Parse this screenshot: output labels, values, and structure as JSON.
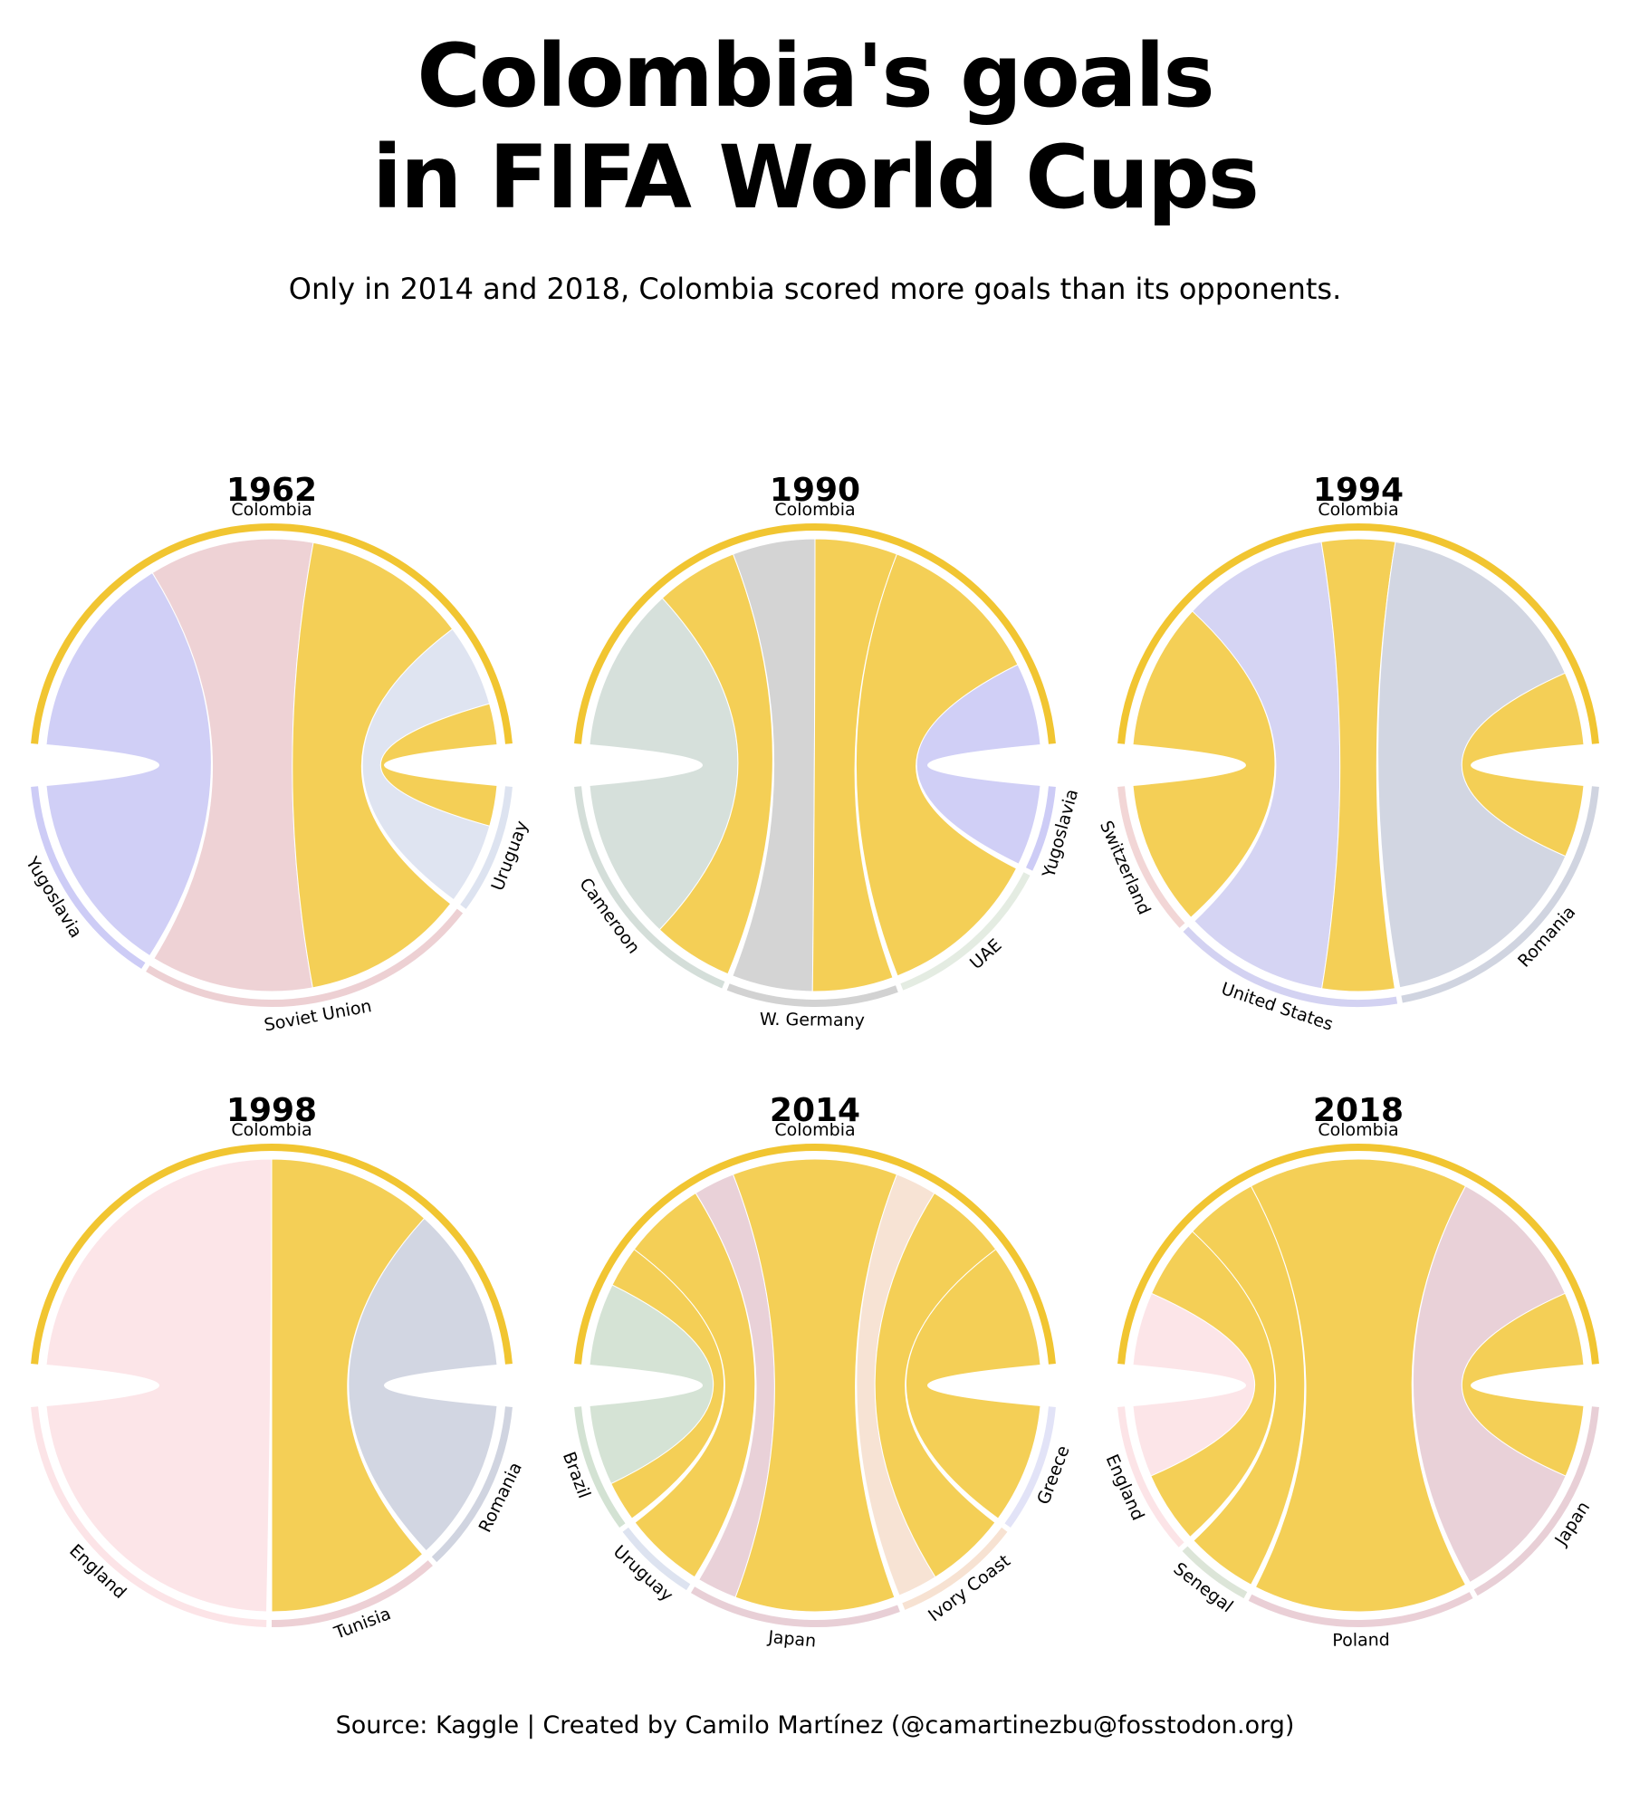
{
  "header": {
    "title_line1": "Colombia's goals",
    "title_line2": "in FIFA World Cups",
    "subtitle": "Only in 2014 and 2018, Colombia scored more goals than its opponents."
  },
  "footer": {
    "source": "Source: Kaggle | Created by Camilo Martínez (@camartinezbu@fosstodon.org)"
  },
  "colors": {
    "colombia": "#F1C531",
    "Uruguay": "#DDE3F0",
    "Yugoslavia": "#CDCCF6",
    "Soviet Union": "#EDD0D3",
    "Cameroon": "#D4DED9",
    "W. Germany": "#D2D2D2",
    "UAE": "#E4ECE2",
    "Switzerland": "#F2D6D6",
    "United States": "#D3D2F2",
    "Romania": "#D0D4E0",
    "England": "#FCE4E7",
    "Tunisia": "#EDD0D5",
    "Brazil": "#D3E2D3",
    "Greece": "#E2E3F7",
    "Japan": "#E8CFD6",
    "Ivory Coast": "#F7E2D2",
    "Senegal": "#DCE5D8",
    "Poland": "#EACFD6"
  },
  "chart_data": [
    {
      "type": "chord",
      "year": "1962",
      "center": "Colombia",
      "opponents": [
        {
          "name": "Yugoslavia",
          "colombia_goals": 0,
          "opponent_goals": 5
        },
        {
          "name": "Soviet Union",
          "colombia_goals": 4,
          "opponent_goals": 4
        },
        {
          "name": "Uruguay",
          "colombia_goals": 1,
          "opponent_goals": 2
        }
      ]
    },
    {
      "type": "chord",
      "year": "1990",
      "center": "Colombia",
      "opponents": [
        {
          "name": "Cameroon",
          "colombia_goals": 1,
          "opponent_goals": 2
        },
        {
          "name": "W. Germany",
          "colombia_goals": 1,
          "opponent_goals": 1
        },
        {
          "name": "UAE",
          "colombia_goals": 2,
          "opponent_goals": 0
        },
        {
          "name": "Yugoslavia",
          "colombia_goals": 0,
          "opponent_goals": 1
        }
      ]
    },
    {
      "type": "chord",
      "year": "1994",
      "center": "Colombia",
      "opponents": [
        {
          "name": "Switzerland",
          "colombia_goals": 2,
          "opponent_goals": 0
        },
        {
          "name": "United States",
          "colombia_goals": 1,
          "opponent_goals": 2
        },
        {
          "name": "Romania",
          "colombia_goals": 1,
          "opponent_goals": 3
        }
      ]
    },
    {
      "type": "chord",
      "year": "1998",
      "center": "Colombia",
      "opponents": [
        {
          "name": "England",
          "colombia_goals": 0,
          "opponent_goals": 2
        },
        {
          "name": "Tunisia",
          "colombia_goals": 1,
          "opponent_goals": 0
        },
        {
          "name": "Romania",
          "colombia_goals": 0,
          "opponent_goals": 1
        }
      ]
    },
    {
      "type": "chord",
      "year": "2014",
      "center": "Colombia",
      "opponents": [
        {
          "name": "Brazil",
          "colombia_goals": 1,
          "opponent_goals": 2
        },
        {
          "name": "Uruguay",
          "colombia_goals": 2,
          "opponent_goals": 0
        },
        {
          "name": "Japan",
          "colombia_goals": 4,
          "opponent_goals": 1
        },
        {
          "name": "Ivory Coast",
          "colombia_goals": 2,
          "opponent_goals": 1
        },
        {
          "name": "Greece",
          "colombia_goals": 3,
          "opponent_goals": 0
        }
      ]
    },
    {
      "type": "chord",
      "year": "2018",
      "center": "Colombia",
      "opponents": [
        {
          "name": "England",
          "colombia_goals": 1,
          "opponent_goals": 1
        },
        {
          "name": "Senegal",
          "colombia_goals": 1,
          "opponent_goals": 0
        },
        {
          "name": "Poland",
          "colombia_goals": 3,
          "opponent_goals": 0
        },
        {
          "name": "Japan",
          "colombia_goals": 1,
          "opponent_goals": 2
        }
      ]
    }
  ]
}
